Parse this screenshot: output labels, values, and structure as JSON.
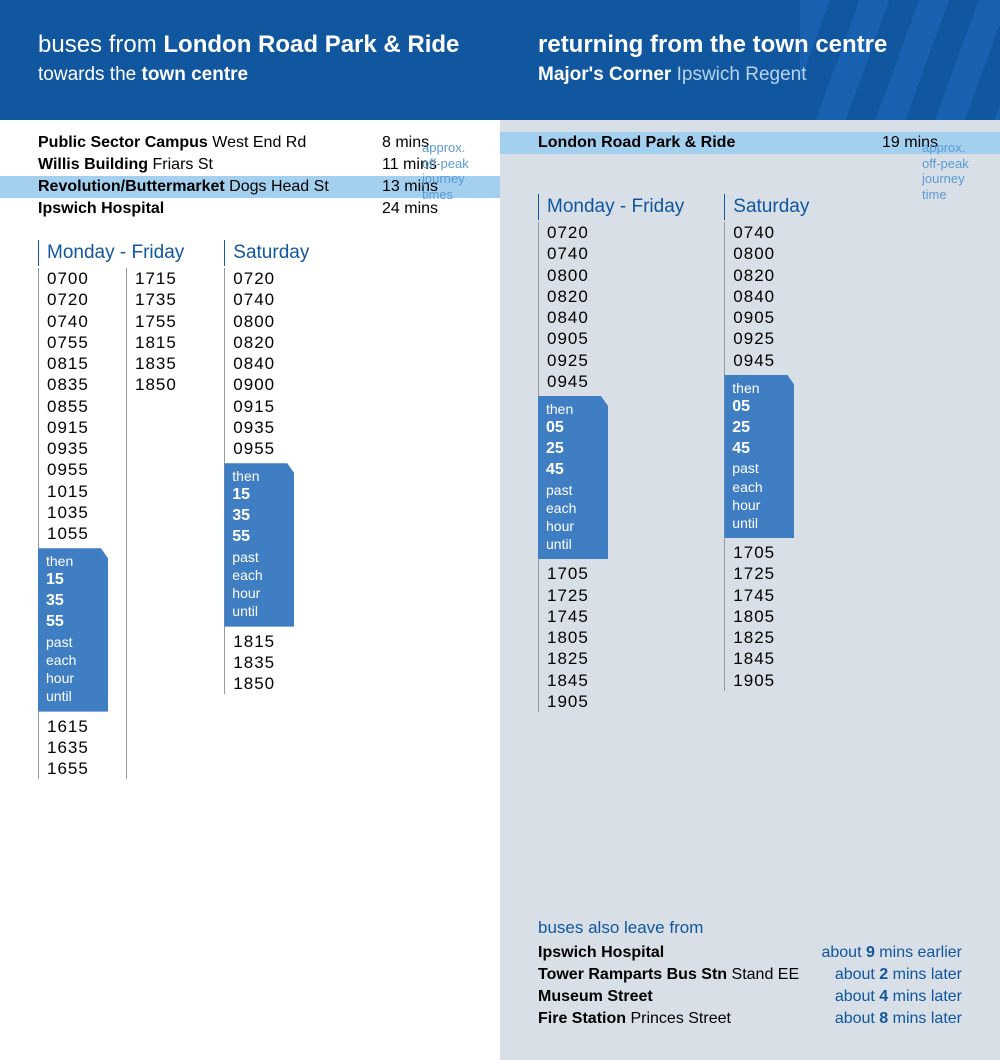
{
  "colors": {
    "header_bg": "#1057a0",
    "highlight_row": "#a4d0ef",
    "thenbox_bg": "#3f7ec2",
    "right_bg": "#d9dfe6",
    "annot": "#5a9bd5"
  },
  "left": {
    "title_pre": "buses from ",
    "title_bold": "London Road Park & Ride",
    "sub_pre": "towards the ",
    "sub_bold": "town centre",
    "stops": [
      {
        "name": "Public Sector Campus",
        "detail": " West End Rd",
        "time": "8 mins",
        "hl": false
      },
      {
        "name": "Willis Building",
        "detail": " Friars St",
        "time": "11 mins",
        "hl": false
      },
      {
        "name": "Revolution/Buttermarket",
        "detail": " Dogs Head St",
        "time": "13 mins",
        "hl": true
      },
      {
        "name": "Ipswich Hospital",
        "detail": "",
        "time": "24 mins",
        "hl": false
      }
    ],
    "annot": "approx. off-peak journey times",
    "monfri": {
      "label": "Monday - Friday",
      "col1": [
        "0700",
        "0720",
        "0740",
        "0755",
        "0815",
        "0835",
        "0855",
        "0915",
        "0935",
        "0955",
        "1015",
        "1035",
        "1055"
      ],
      "then": {
        "word_then": "then",
        "mins": [
          "15",
          "35",
          "55"
        ],
        "tail": [
          "past",
          "each",
          "hour",
          "until"
        ]
      },
      "col1b": [
        "1615",
        "1635",
        "1655"
      ],
      "col2": [
        "1715",
        "1735",
        "1755",
        "1815",
        "1835",
        "1850"
      ]
    },
    "sat": {
      "label": "Saturday",
      "col1": [
        "0720",
        "0740",
        "0800",
        "0820",
        "0840",
        "0900",
        "0915",
        "0935",
        "0955"
      ],
      "then": {
        "word_then": "then",
        "mins": [
          "15",
          "35",
          "55"
        ],
        "tail": [
          "past",
          "each",
          "hour",
          "until"
        ]
      },
      "col1b": [
        "1815",
        "1835",
        "1850"
      ]
    }
  },
  "right": {
    "title_bold": "returning from the town centre",
    "sub_bold": "Major's Corner",
    "sub_reg": " Ipswich Regent",
    "stops": [
      {
        "name": "London Road Park & Ride",
        "detail": "",
        "time": "19 mins",
        "hl": true
      }
    ],
    "annot": "approx. off-peak journey time",
    "monfri": {
      "label": "Monday - Friday",
      "col1": [
        "0720",
        "0740",
        "0800",
        "0820",
        "0840",
        "0905",
        "0925",
        "0945"
      ],
      "then": {
        "word_then": "then",
        "mins": [
          "05",
          "25",
          "45"
        ],
        "tail": [
          "past",
          "each",
          "hour",
          "until"
        ]
      },
      "col1b": [
        "1705",
        "1725",
        "1745",
        "1805",
        "1825",
        "1845",
        "1905"
      ]
    },
    "sat": {
      "label": "Saturday",
      "col1": [
        "0740",
        "0800",
        "0820",
        "0840",
        "0905",
        "0925",
        "0945"
      ],
      "then": {
        "word_then": "then",
        "mins": [
          "05",
          "25",
          "45"
        ],
        "tail": [
          "past",
          "each",
          "hour",
          "until"
        ]
      },
      "col1b": [
        "1705",
        "1725",
        "1745",
        "1805",
        "1825",
        "1845",
        "1905"
      ]
    },
    "also": {
      "hdr": "buses also leave from",
      "rows": [
        {
          "name": "Ipswich Hospital",
          "detail": "",
          "off_pre": "about ",
          "off_b": "9",
          "off_post": " mins earlier"
        },
        {
          "name": "Tower Ramparts Bus Stn",
          "detail": " Stand EE",
          "off_pre": "about ",
          "off_b": "2",
          "off_post": " mins later"
        },
        {
          "name": "Museum Street",
          "detail": "",
          "off_pre": "about ",
          "off_b": "4",
          "off_post": " mins later"
        },
        {
          "name": "Fire Station",
          "detail": " Princes Street",
          "off_pre": "about ",
          "off_b": "8",
          "off_post": " mins later"
        }
      ]
    }
  }
}
